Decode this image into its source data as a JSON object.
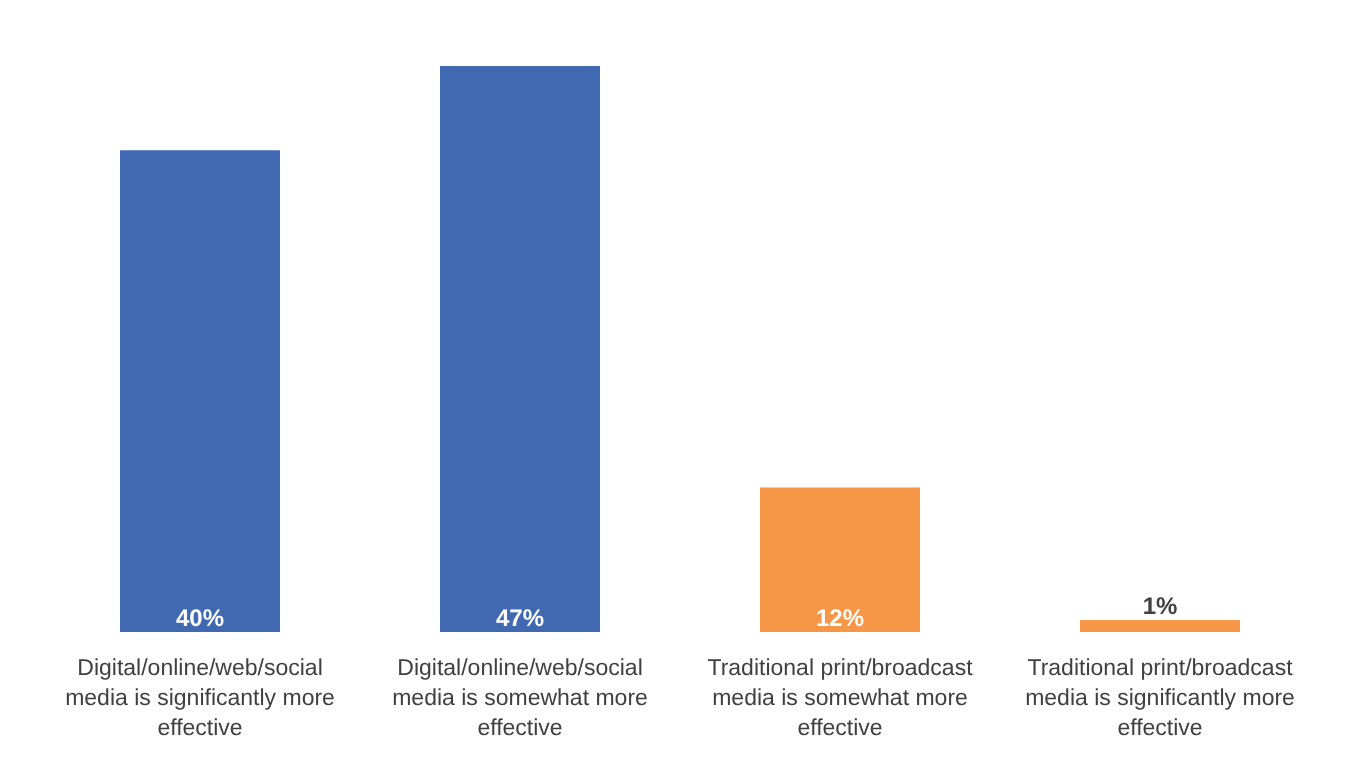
{
  "chart_data": {
    "type": "bar",
    "categories": [
      "Digital/online/web/social media is significantly more effective",
      "Digital/online/web/social media is somewhat more effective",
      "Traditional print/broadcast media is somewhat more effective",
      "Traditional print/broadcast media is significantly more effective"
    ],
    "values": [
      40,
      47,
      12,
      1
    ],
    "colors": [
      "#4169b2",
      "#4169b2",
      "#f79646",
      "#f79646"
    ],
    "value_labels": [
      "40%",
      "47%",
      "12%",
      "1%"
    ]
  }
}
